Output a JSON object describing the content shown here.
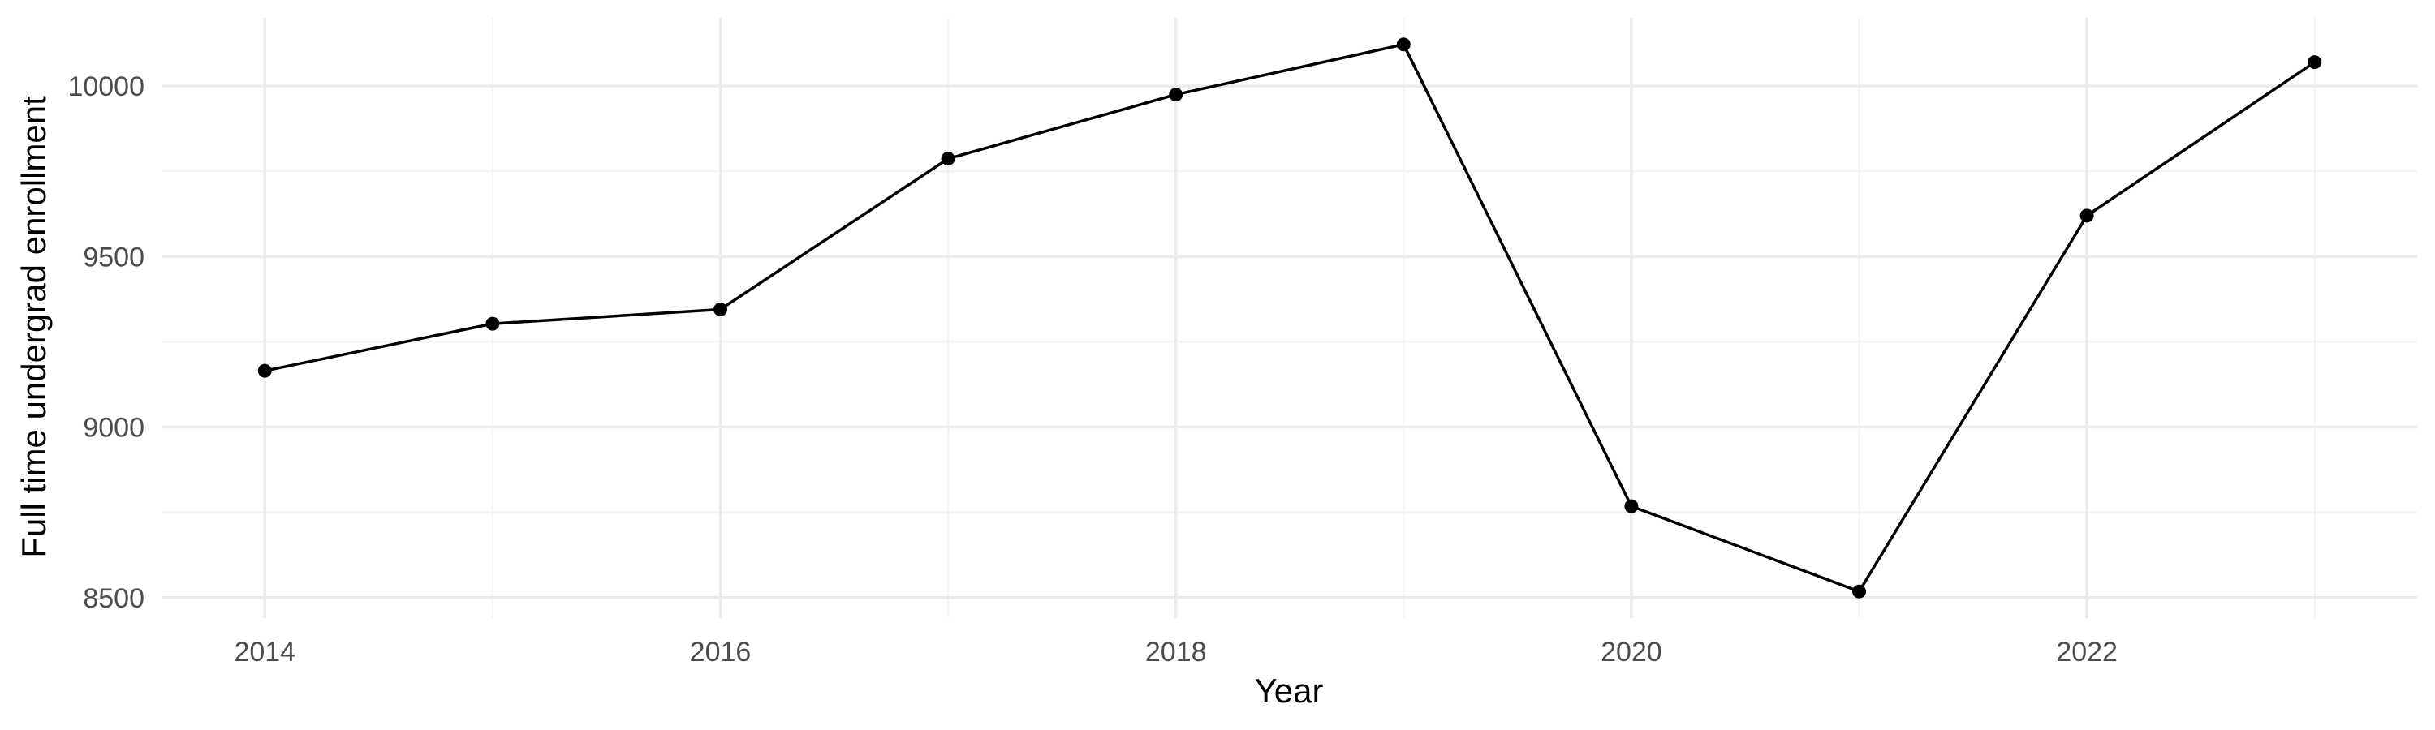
{
  "chart_data": {
    "type": "line",
    "title": "",
    "xlabel": "Year",
    "ylabel": "Full time undergrad enrollment",
    "x": [
      2014,
      2015,
      2016,
      2017,
      2018,
      2019,
      2020,
      2021,
      2022,
      2023
    ],
    "series": [
      {
        "values": [
          9165,
          9303,
          9345,
          9787,
          9975,
          10122,
          8768,
          8518,
          9620,
          10070
        ]
      }
    ],
    "xlim": [
      2013.55,
      2023.45
    ],
    "ylim": [
      8440,
      10200
    ],
    "x_ticks": [
      2014,
      2016,
      2018,
      2020,
      2022
    ],
    "x_tick_labels": [
      "2014",
      "2016",
      "2018",
      "2020",
      "2022"
    ],
    "y_ticks": [
      8500,
      9000,
      9500,
      10000
    ],
    "y_tick_labels": [
      "8500",
      "9000",
      "9500",
      "10000"
    ],
    "grid": true,
    "legend": "none",
    "colors": {
      "line": "#000000",
      "point": "#000000",
      "grid_major": "#ebebeb",
      "grid_minor": "#f3f3f3",
      "tick_text": "#4d4d4d",
      "axis_title": "#000000"
    }
  }
}
